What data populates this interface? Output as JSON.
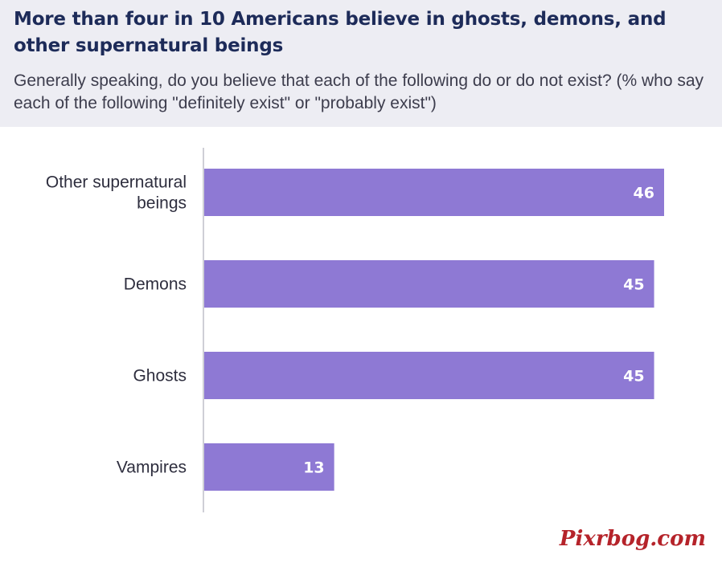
{
  "title": "More than four in 10 Americans believe in ghosts, demons, and other supernatural beings",
  "subtitle": "Generally speaking, do you believe that each of the following do or do not exist? (% who say each of the following \"definitely exist\" or \"probably exist\")",
  "watermark": "Pixrbog.com",
  "colors": {
    "bar": "#8e79d4",
    "header_bg": "#ededf3",
    "title": "#1d2b59"
  },
  "chart_data": {
    "type": "bar",
    "orientation": "horizontal",
    "categories": [
      "Other supernatural beings",
      "Demons",
      "Ghosts",
      "Vampires"
    ],
    "category_lines": [
      [
        "Other supernatural",
        "beings"
      ],
      [
        "Demons"
      ],
      [
        "Ghosts"
      ],
      [
        "Vampires"
      ]
    ],
    "values": [
      46,
      45,
      45,
      13
    ],
    "xlim": [
      0,
      46
    ],
    "grid": false,
    "legend": "none"
  }
}
